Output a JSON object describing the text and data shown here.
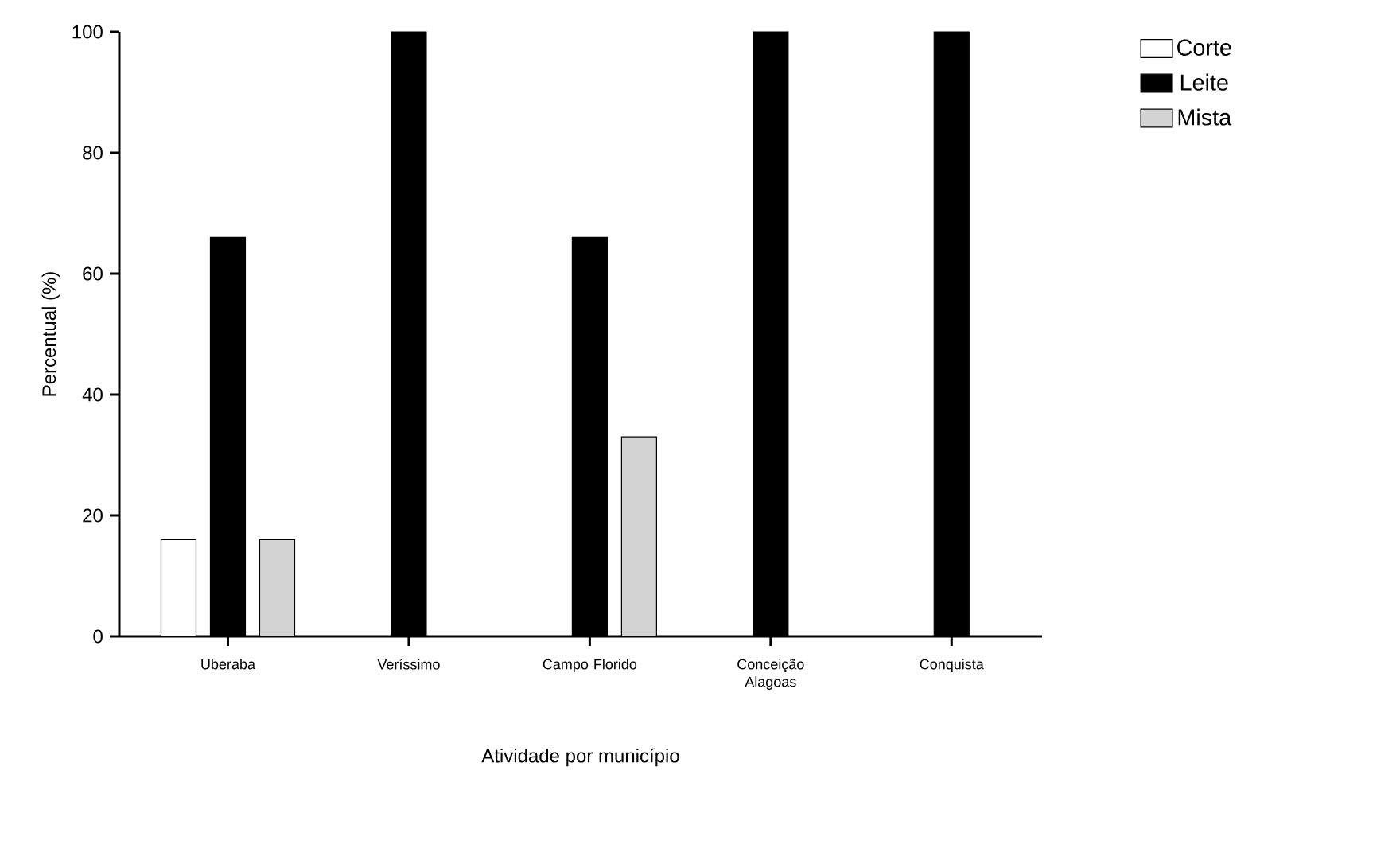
{
  "chart_data": {
    "type": "bar",
    "xlabel": "Atividade por município",
    "ylabel": "Percentual (%)",
    "categories": [
      "Uberaba",
      "Veríssimo",
      "Campo Florido",
      "Conceição Alagoas",
      "Conquista"
    ],
    "series": [
      {
        "name": "Corte",
        "color": "#ffffff",
        "values": [
          16,
          null,
          null,
          null,
          null
        ]
      },
      {
        "name": "Leite",
        "color": "#000000",
        "values": [
          66,
          100,
          66,
          100,
          100
        ]
      },
      {
        "name": "Mista",
        "color": "#d3d3d3",
        "values": [
          16,
          null,
          33,
          null,
          null
        ]
      }
    ],
    "ylim": [
      0,
      100
    ],
    "yticks": [
      0,
      20,
      40,
      60,
      80,
      100
    ],
    "legend": "top right",
    "grid": false
  }
}
